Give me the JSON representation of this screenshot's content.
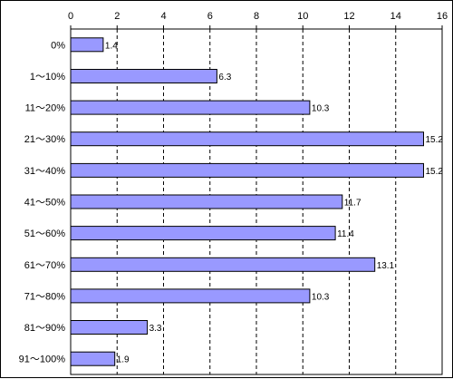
{
  "chart_data": {
    "type": "bar",
    "orientation": "horizontal",
    "categories": [
      "0%",
      "1～10%",
      "11～20%",
      "21～30%",
      "31～40%",
      "41～50%",
      "51～60%",
      "61～70%",
      "71～80%",
      "81～90%",
      "91～100%"
    ],
    "values": [
      1.4,
      6.3,
      10.3,
      15.2,
      15.2,
      11.7,
      11.4,
      13.1,
      10.3,
      3.3,
      1.9
    ],
    "value_labels": [
      "1.4",
      "6.3",
      "10.3",
      "15.2",
      "15.2",
      "11.7",
      "11.4",
      "13.1",
      "10.3",
      "3.3",
      "1.9"
    ],
    "ticks": [
      0,
      2,
      4,
      6,
      8,
      10,
      12,
      14,
      16
    ],
    "xlim": [
      0,
      16
    ],
    "x_axis_position": "top",
    "grid": "vertical-dashed",
    "colors": {
      "bar_fill": "#9999ff",
      "bar_stroke": "#000000",
      "grid": "#000000"
    }
  }
}
